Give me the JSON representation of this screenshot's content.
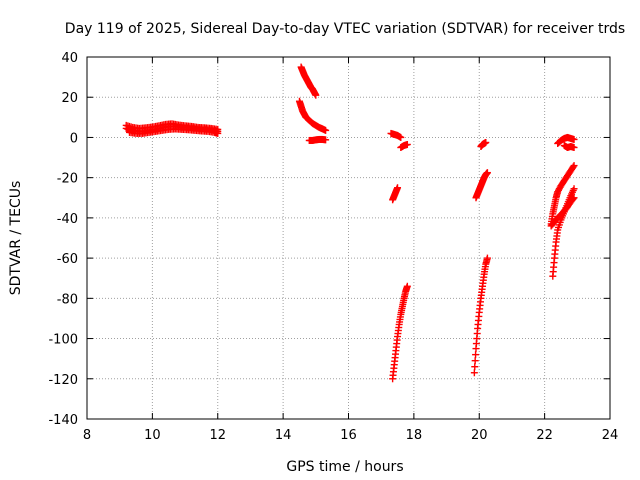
{
  "chart_data": {
    "type": "scatter",
    "title": "Day 119 of 2025, Sidereal Day-to-day VTEC variation (SDTVAR) for receiver trds",
    "xlabel": "GPS time / hours",
    "ylabel": "SDTVAR / TECUs",
    "xlim": [
      8,
      24
    ],
    "ylim": [
      -140,
      40
    ],
    "x_ticks": [
      8,
      10,
      12,
      14,
      16,
      18,
      20,
      22,
      24
    ],
    "y_ticks": [
      -140,
      -120,
      -100,
      -80,
      -60,
      -40,
      -20,
      0,
      20,
      40
    ],
    "x_tick_labels": [
      "8",
      "10",
      "12",
      "14",
      "16",
      "18",
      "20",
      "22",
      "24"
    ],
    "y_tick_labels": [
      "-140",
      "-120",
      "-100",
      "-80",
      "-60",
      "-40",
      "-20",
      "0",
      "20",
      "40"
    ],
    "grid": true,
    "marker": "+",
    "color": "#ff0000",
    "segments": [
      {
        "points": [
          [
            9.2,
            4.5
          ],
          [
            9.35,
            3.5
          ],
          [
            9.5,
            3.2
          ],
          [
            9.7,
            3.0
          ],
          [
            9.9,
            3.5
          ],
          [
            10.1,
            4.0
          ],
          [
            10.3,
            4.8
          ],
          [
            10.5,
            5.5
          ],
          [
            10.7,
            5.5
          ],
          [
            10.9,
            5.0
          ],
          [
            11.1,
            4.8
          ],
          [
            11.3,
            4.5
          ],
          [
            11.5,
            4.2
          ],
          [
            11.7,
            4.0
          ],
          [
            11.9,
            3.5
          ],
          [
            12.0,
            3.0
          ]
        ]
      },
      {
        "points": [
          [
            9.2,
            6.0
          ],
          [
            9.4,
            5.0
          ],
          [
            9.6,
            4.5
          ],
          [
            9.8,
            4.8
          ],
          [
            10.0,
            5.2
          ],
          [
            10.2,
            5.8
          ],
          [
            10.4,
            6.5
          ],
          [
            10.6,
            6.8
          ],
          [
            10.8,
            6.2
          ],
          [
            11.0,
            5.8
          ],
          [
            11.2,
            5.5
          ],
          [
            11.4,
            5.0
          ],
          [
            11.6,
            4.8
          ],
          [
            11.8,
            4.5
          ],
          [
            12.0,
            4.0
          ]
        ]
      },
      {
        "points": [
          [
            9.3,
            2.5
          ],
          [
            9.5,
            2.0
          ],
          [
            9.7,
            2.0
          ],
          [
            9.9,
            2.5
          ],
          [
            10.1,
            3.0
          ],
          [
            10.3,
            3.5
          ],
          [
            10.5,
            4.0
          ],
          [
            10.7,
            4.2
          ],
          [
            10.9,
            4.0
          ],
          [
            11.1,
            3.8
          ],
          [
            11.3,
            3.5
          ],
          [
            11.5,
            3.2
          ],
          [
            11.7,
            3.0
          ],
          [
            11.9,
            2.5
          ],
          [
            12.0,
            2.0
          ]
        ]
      },
      {
        "points": [
          [
            14.55,
            35.0
          ],
          [
            14.6,
            33.0
          ],
          [
            14.65,
            31.0
          ],
          [
            14.7,
            29.5
          ],
          [
            14.75,
            28.0
          ],
          [
            14.8,
            26.5
          ],
          [
            14.85,
            25.0
          ],
          [
            14.9,
            24.0
          ],
          [
            14.95,
            22.5
          ],
          [
            15.0,
            21.0
          ]
        ]
      },
      {
        "points": [
          [
            14.5,
            18.0
          ],
          [
            14.55,
            15.5
          ],
          [
            14.6,
            13.0
          ],
          [
            14.65,
            11.5
          ],
          [
            14.7,
            10.0
          ],
          [
            14.8,
            8.5
          ],
          [
            14.9,
            7.0
          ],
          [
            15.0,
            6.0
          ],
          [
            15.1,
            5.0
          ],
          [
            15.2,
            4.3
          ],
          [
            15.3,
            3.5
          ]
        ]
      },
      {
        "points": [
          [
            14.8,
            -1.5
          ],
          [
            14.9,
            -1.5
          ],
          [
            15.0,
            -1.2
          ],
          [
            15.1,
            -1.0
          ],
          [
            15.2,
            -1.0
          ],
          [
            15.3,
            -1.2
          ]
        ]
      },
      {
        "points": [
          [
            17.3,
            2.0
          ],
          [
            17.4,
            1.5
          ],
          [
            17.5,
            1.0
          ],
          [
            17.6,
            0.0
          ]
        ]
      },
      {
        "points": [
          [
            17.6,
            -5.0
          ],
          [
            17.7,
            -4.0
          ],
          [
            17.8,
            -3.5
          ]
        ]
      },
      {
        "points": [
          [
            17.35,
            -31.0
          ],
          [
            17.4,
            -29.0
          ],
          [
            17.45,
            -27.0
          ],
          [
            17.5,
            -25.0
          ]
        ]
      },
      {
        "points": [
          [
            17.35,
            -120.0
          ],
          [
            17.4,
            -113.0
          ],
          [
            17.45,
            -106.0
          ],
          [
            17.5,
            -99.0
          ],
          [
            17.55,
            -93.0
          ],
          [
            17.6,
            -88.0
          ],
          [
            17.65,
            -84.0
          ],
          [
            17.7,
            -80.0
          ],
          [
            17.75,
            -76.5
          ],
          [
            17.8,
            -74.0
          ]
        ]
      },
      {
        "points": [
          [
            19.9,
            -30.0
          ],
          [
            19.95,
            -28.0
          ],
          [
            20.0,
            -26.0
          ],
          [
            20.05,
            -24.0
          ],
          [
            20.1,
            -22.0
          ],
          [
            20.15,
            -20.0
          ],
          [
            20.2,
            -18.5
          ],
          [
            20.25,
            -17.5
          ]
        ]
      },
      {
        "points": [
          [
            20.05,
            -4.5
          ],
          [
            20.1,
            -3.5
          ],
          [
            20.15,
            -3.0
          ],
          [
            20.2,
            -2.5
          ]
        ]
      },
      {
        "points": [
          [
            19.85,
            -117.0
          ],
          [
            19.9,
            -105.0
          ],
          [
            19.95,
            -95.0
          ],
          [
            20.0,
            -87.0
          ],
          [
            20.05,
            -80.0
          ],
          [
            20.1,
            -74.0
          ],
          [
            20.15,
            -68.0
          ],
          [
            20.2,
            -63.0
          ],
          [
            20.25,
            -60.0
          ]
        ]
      },
      {
        "points": [
          [
            22.4,
            -3.0
          ],
          [
            22.5,
            -1.5
          ],
          [
            22.6,
            -0.5
          ],
          [
            22.7,
            0.0
          ],
          [
            22.8,
            -0.5
          ],
          [
            22.9,
            -1.0
          ]
        ]
      },
      {
        "points": [
          [
            22.6,
            -4.0
          ],
          [
            22.7,
            -5.0
          ],
          [
            22.8,
            -4.5
          ],
          [
            22.9,
            -5.0
          ]
        ]
      },
      {
        "points": [
          [
            22.25,
            -69.0
          ],
          [
            22.3,
            -60.0
          ],
          [
            22.35,
            -52.0
          ],
          [
            22.4,
            -46.0
          ],
          [
            22.5,
            -41.0
          ],
          [
            22.6,
            -37.0
          ],
          [
            22.7,
            -33.0
          ],
          [
            22.8,
            -29.0
          ],
          [
            22.9,
            -25.5
          ]
        ]
      },
      {
        "points": [
          [
            22.2,
            -43.0
          ],
          [
            22.25,
            -38.0
          ],
          [
            22.3,
            -34.0
          ],
          [
            22.35,
            -30.0
          ],
          [
            22.4,
            -27.0
          ],
          [
            22.5,
            -24.0
          ],
          [
            22.6,
            -21.5
          ],
          [
            22.7,
            -19.0
          ],
          [
            22.8,
            -16.5
          ],
          [
            22.9,
            -14.0
          ]
        ]
      },
      {
        "points": [
          [
            22.2,
            -44.0
          ],
          [
            22.3,
            -42.0
          ],
          [
            22.4,
            -40.0
          ],
          [
            22.5,
            -38.5
          ],
          [
            22.6,
            -36.5
          ],
          [
            22.7,
            -34.5
          ],
          [
            22.8,
            -32.0
          ],
          [
            22.9,
            -30.0
          ]
        ]
      }
    ]
  }
}
